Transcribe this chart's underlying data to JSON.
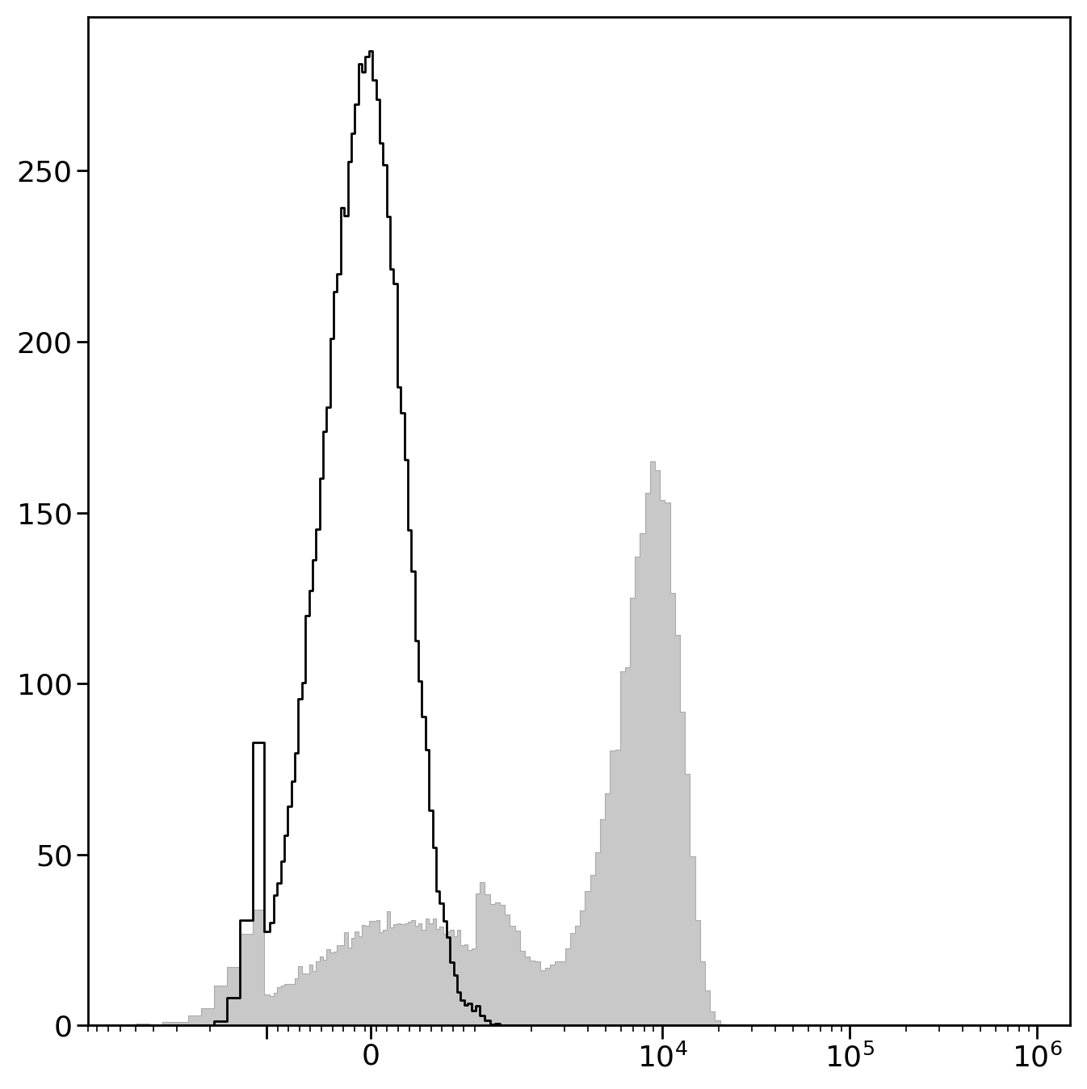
{
  "title": "",
  "ylim": [
    0,
    295
  ],
  "yticks": [
    0,
    50,
    100,
    150,
    200,
    250
  ],
  "background_color": "#ffffff",
  "gray_fill_color": "#c8c8c8",
  "gray_edge_color": "#aaaaaa",
  "black_line_color": "#000000",
  "figsize": [
    13.46,
    13.48
  ],
  "dpi": 100,
  "linthresh": 1000,
  "linscale": 0.5
}
